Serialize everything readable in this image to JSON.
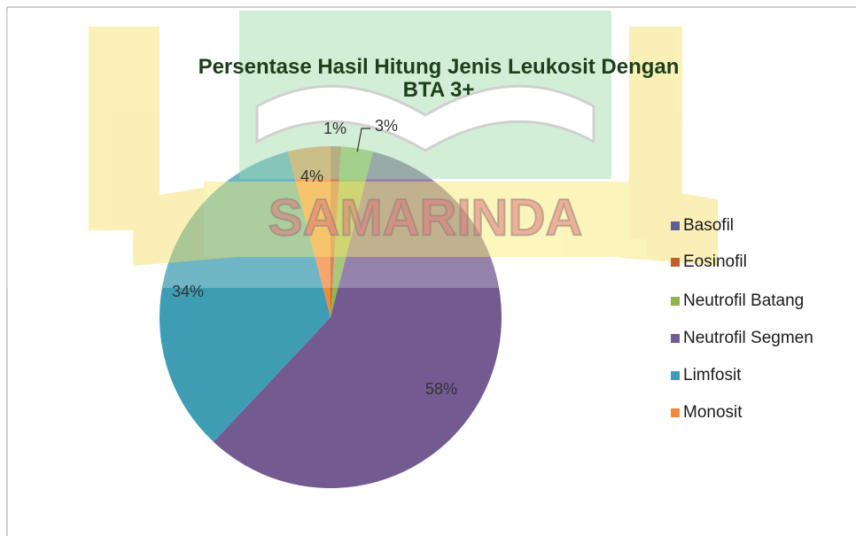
{
  "chart_data": {
    "type": "pie",
    "title": "Persentase Hasil Hitung Jenis Leukosit Dengan BTA 3+",
    "categories": [
      "Basofil",
      "Eosinofil",
      "Neutrofil Batang",
      "Neutrofil Segmen",
      "Limfosit",
      "Monosit"
    ],
    "values": [
      0,
      1,
      3,
      58,
      34,
      4
    ],
    "value_labels": [
      null,
      "1%",
      "3%",
      "58%",
      "34%",
      "4%"
    ],
    "colors": [
      "#5b5f96",
      "#c0602e",
      "#8fb54e",
      "#735a90",
      "#3f9db3",
      "#ef8a3c"
    ],
    "legend": "right",
    "watermark": "SAMARINDA"
  }
}
